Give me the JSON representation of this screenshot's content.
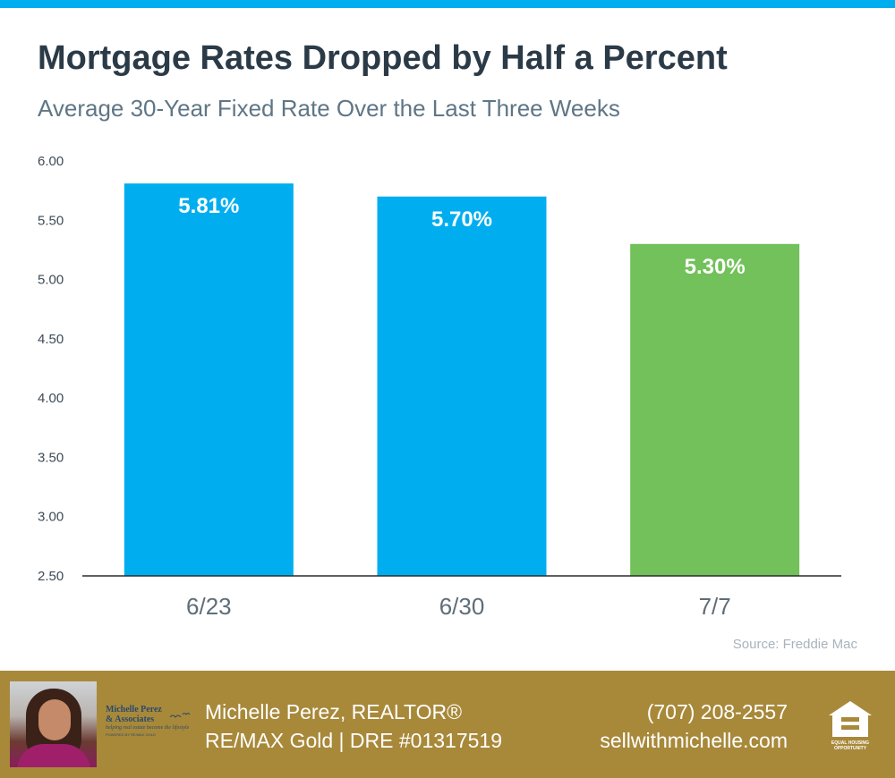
{
  "header": {
    "title": "Mortgage Rates Dropped by Half a Percent",
    "subtitle": "Average 30-Year Fixed Rate Over the Last Three Weeks"
  },
  "chart_data": {
    "type": "bar",
    "title": "Mortgage Rates Dropped by Half a Percent",
    "subtitle": "Average 30-Year Fixed Rate Over the Last Three Weeks",
    "categories": [
      "6/23",
      "6/30",
      "7/7"
    ],
    "values": [
      5.81,
      5.7,
      5.3
    ],
    "data_labels": [
      "5.81%",
      "5.70%",
      "5.30%"
    ],
    "bar_colors": [
      "#00aeef",
      "#00aeef",
      "#72c15a"
    ],
    "ylim": [
      2.5,
      6.0
    ],
    "yticks": [
      "2.50",
      "3.00",
      "3.50",
      "4.00",
      "4.50",
      "5.00",
      "5.50",
      "6.00"
    ],
    "xlabel": "",
    "ylabel": "",
    "grid": false,
    "legend": "none"
  },
  "source": "Source: Freddie Mac",
  "footer": {
    "agent_name": "Michelle Perez, REALTOR®",
    "agent_office": "RE/MAX Gold | DRE #01317519",
    "phone": "(707) 208-2557",
    "website": "sellwithmichelle.com",
    "logo": {
      "line1": "Michelle Perez",
      "line2": "& Associates",
      "tagline": "helping real estate become the lifestyle",
      "powered": "POWERED BY RE/MAX GOLD"
    },
    "eho_text": "EQUAL HOUSING OPPORTUNITY"
  },
  "colors": {
    "accent_blue": "#00aeef",
    "accent_green": "#72c15a",
    "footer_gold": "#a8893a",
    "title_text": "#2b3a47"
  }
}
